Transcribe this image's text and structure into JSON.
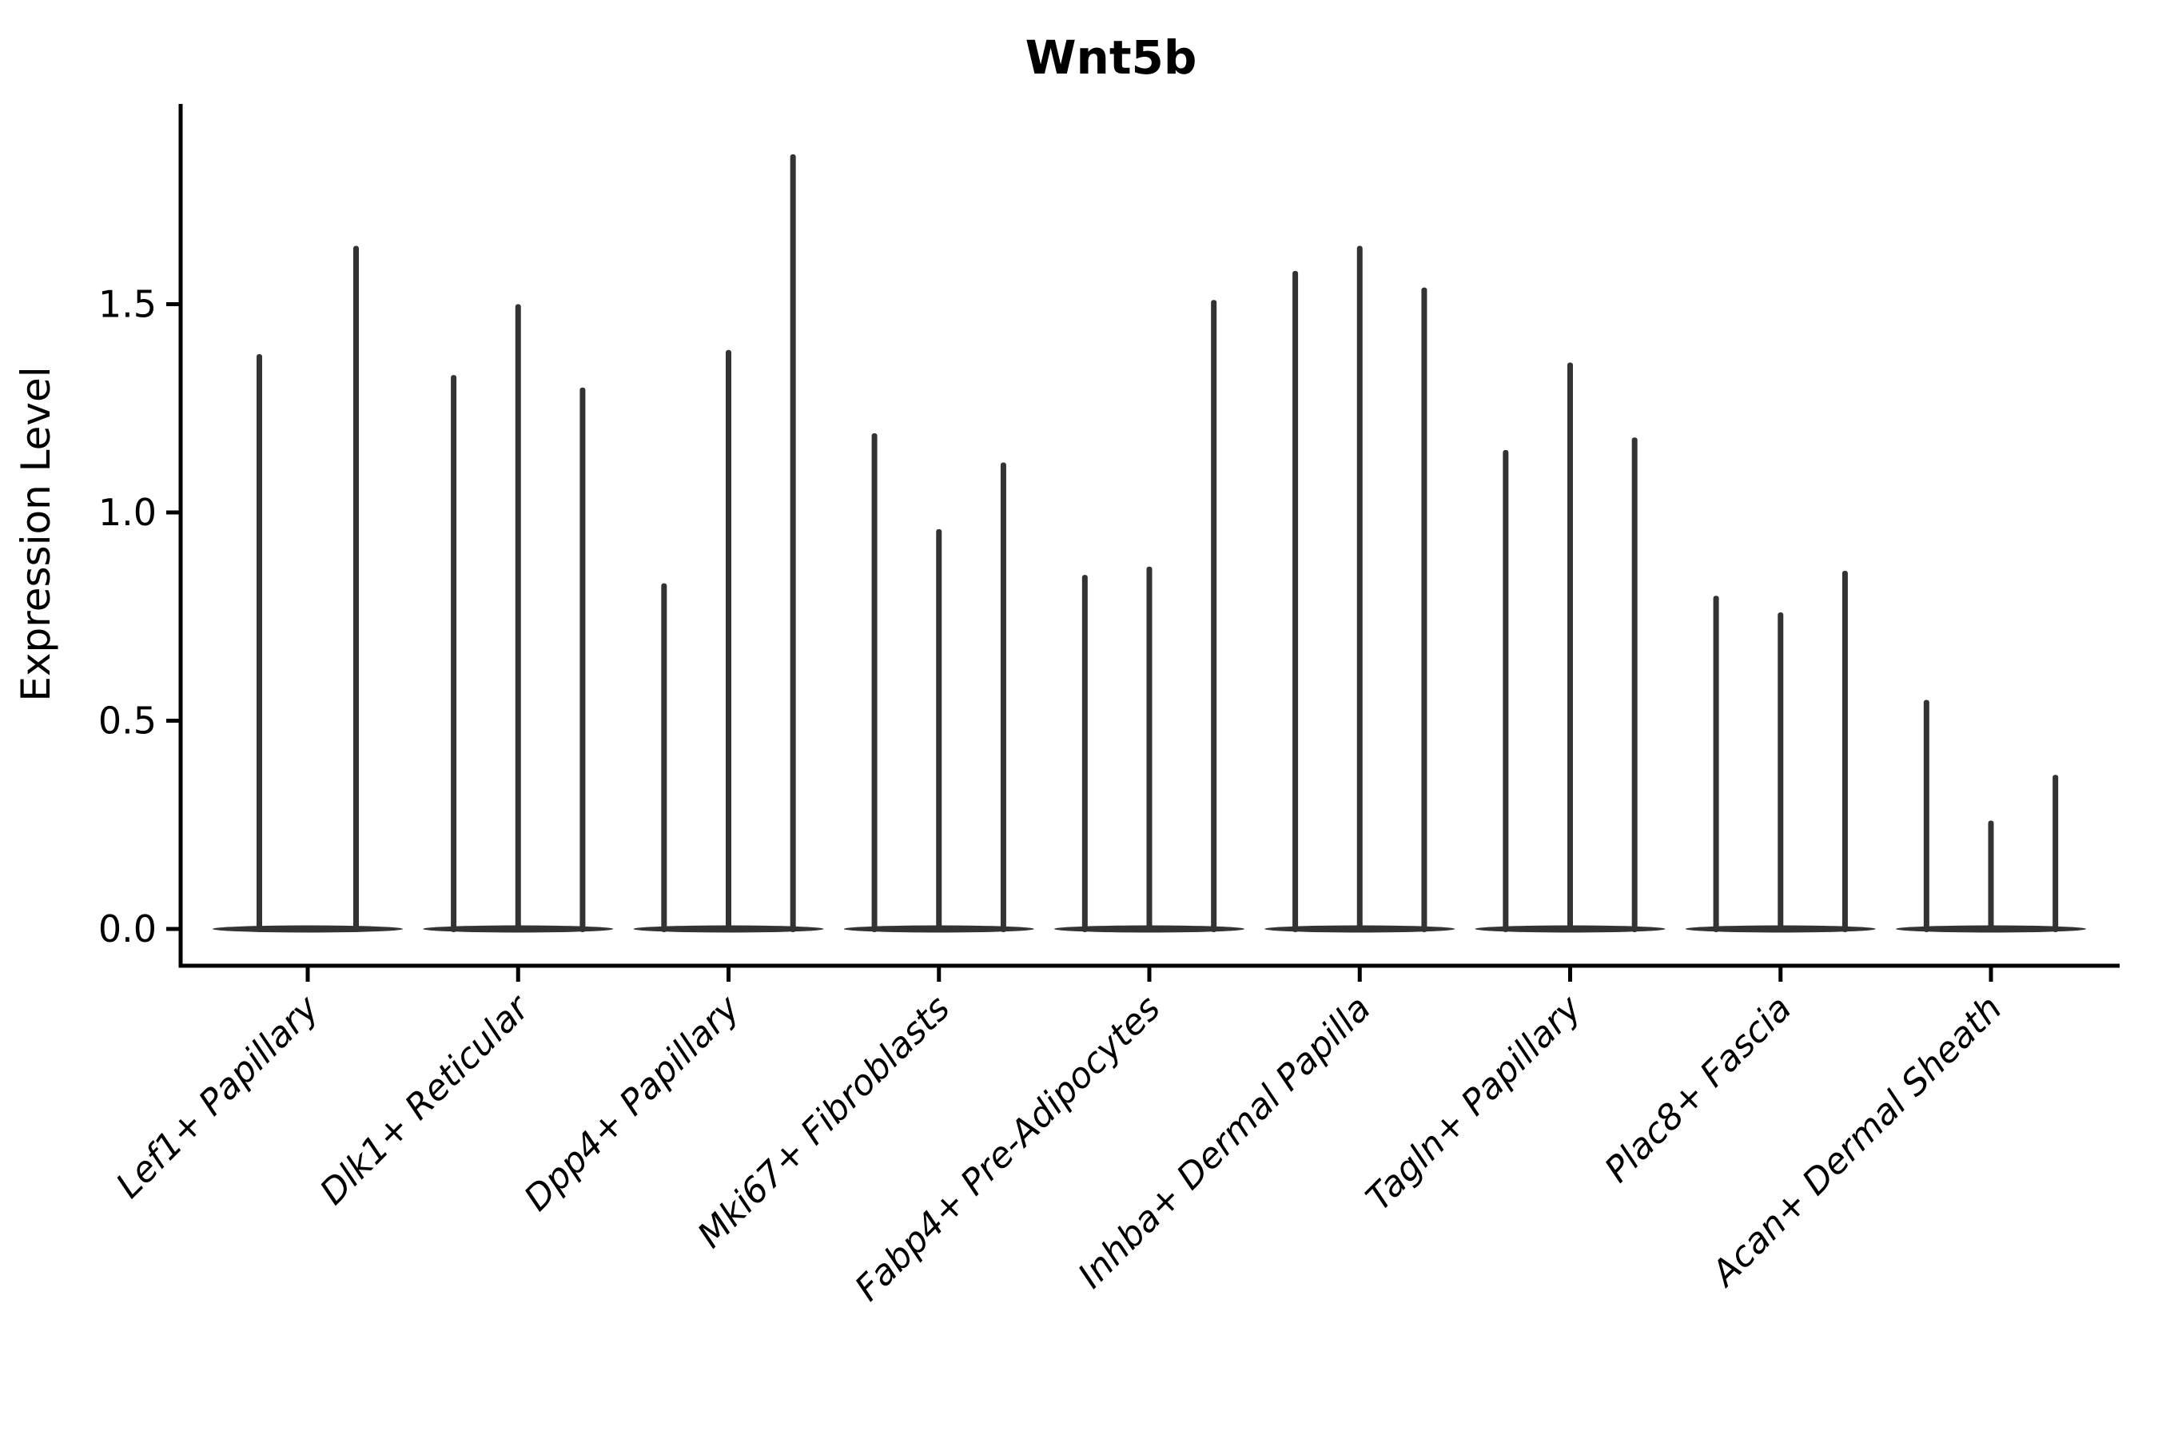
{
  "title": "Wnt5b",
  "ylabel": "Expression Level",
  "chart_data": {
    "type": "violin",
    "title": "Wnt5b",
    "xlabel": "",
    "ylabel": "Expression Level",
    "grid": false,
    "legend": "none",
    "background": "#ffffff",
    "violin_color": "#333333",
    "axis_color": "#000000",
    "x_tick_rotation": 45,
    "ylim": [
      -0.09,
      1.98
    ],
    "yticks": [
      0.0,
      0.5,
      1.0,
      1.5
    ],
    "ytick_labels": [
      "0.0",
      "0.5",
      "1.0",
      "1.5"
    ],
    "baseline_value": 0.0,
    "violins_per_group": 3,
    "groups": [
      {
        "category": "Lef1+ Papillary",
        "violin_peaks": [
          1.38,
          null,
          1.64
        ]
      },
      {
        "category": "Dlk1+ Reticular",
        "violin_peaks": [
          1.33,
          1.5,
          1.3
        ]
      },
      {
        "category": "Dpp4+ Papillary",
        "violin_peaks": [
          0.83,
          1.39,
          1.86
        ]
      },
      {
        "category": "Mki67+ Fibroblasts",
        "violin_peaks": [
          1.19,
          0.96,
          1.12
        ]
      },
      {
        "category": "Fabp4+ Pre-Adipocytes",
        "violin_peaks": [
          0.85,
          0.87,
          1.51
        ]
      },
      {
        "category": "Inhba+ Dermal Papilla",
        "violin_peaks": [
          1.58,
          1.64,
          1.54
        ]
      },
      {
        "category": "Tagln+ Papillary",
        "violin_peaks": [
          1.15,
          1.36,
          1.18
        ]
      },
      {
        "category": "Plac8+ Fascia",
        "violin_peaks": [
          0.8,
          0.76,
          0.86
        ]
      },
      {
        "category": "Acan+ Dermal Sheath",
        "violin_peaks": [
          0.55,
          0.26,
          0.37
        ]
      }
    ]
  }
}
